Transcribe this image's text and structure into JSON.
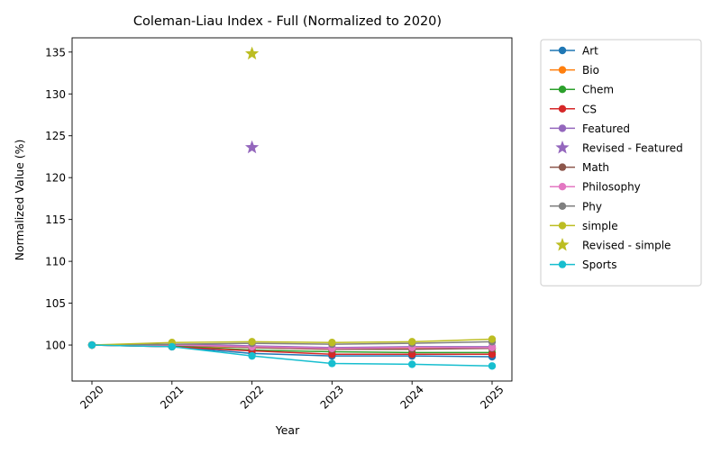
{
  "chart_data": {
    "type": "line",
    "title": "Coleman-Liau Index - Full (Normalized to 2020)",
    "xlabel": "Year",
    "ylabel": "Normalized Value (%)",
    "x": [
      "2020",
      "2021",
      "2022",
      "2023",
      "2024",
      "2025"
    ],
    "ylim": [
      95.7,
      136.7
    ],
    "yticks": [
      "100",
      "105",
      "110",
      "115",
      "120",
      "125",
      "130",
      "135"
    ],
    "grid": false,
    "legend_position": "outside-right",
    "series": [
      {
        "name": "Art",
        "color": "#1f77b4",
        "marker": "circle",
        "values": [
          100,
          99.8,
          99.0,
          98.7,
          98.7,
          98.6
        ]
      },
      {
        "name": "Bio",
        "color": "#ff7f0e",
        "marker": "circle",
        "values": [
          100,
          99.9,
          99.7,
          99.5,
          99.6,
          99.6
        ]
      },
      {
        "name": "Chem",
        "color": "#2ca02c",
        "marker": "circle",
        "values": [
          100,
          99.9,
          99.4,
          99.2,
          99.1,
          99.1
        ]
      },
      {
        "name": "CS",
        "color": "#d62728",
        "marker": "circle",
        "values": [
          100,
          99.8,
          99.3,
          98.9,
          98.9,
          98.9
        ]
      },
      {
        "name": "Featured",
        "color": "#9467bd",
        "marker": "circle",
        "values": [
          100,
          100.1,
          99.9,
          99.7,
          99.8,
          99.8
        ]
      },
      {
        "name": "Revised - Featured",
        "color": "#9467bd",
        "marker": "star",
        "points": [
          {
            "x": "2022",
            "y": 123.6
          }
        ]
      },
      {
        "name": "Math",
        "color": "#8c564b",
        "marker": "circle",
        "values": [
          100,
          100.0,
          99.7,
          99.5,
          99.5,
          99.6
        ]
      },
      {
        "name": "Philosophy",
        "color": "#e377c2",
        "marker": "circle",
        "values": [
          100,
          100.0,
          99.8,
          99.6,
          99.7,
          99.7
        ]
      },
      {
        "name": "Phy",
        "color": "#7f7f7f",
        "marker": "circle",
        "values": [
          100,
          100.1,
          100.2,
          100.1,
          100.2,
          100.4
        ]
      },
      {
        "name": "simple",
        "color": "#bcbd22",
        "marker": "circle",
        "values": [
          100,
          100.3,
          100.4,
          100.3,
          100.4,
          100.7
        ]
      },
      {
        "name": "Revised - simple",
        "color": "#bcbd22",
        "marker": "star",
        "points": [
          {
            "x": "2022",
            "y": 134.8
          }
        ]
      },
      {
        "name": "Sports",
        "color": "#17becf",
        "marker": "circle",
        "values": [
          100,
          99.8,
          98.7,
          97.8,
          97.7,
          97.5
        ]
      }
    ]
  }
}
